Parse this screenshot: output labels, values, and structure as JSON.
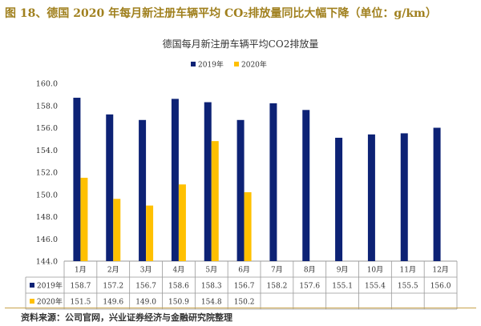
{
  "figure": {
    "title": "图 18、德国 2020 年每月新注册车辆平均 CO₂排放量同比大幅下降（单位：g/km）",
    "source": "资料来源：公司官网，兴业证券经济与金融研究院整理"
  },
  "chart_data": {
    "type": "bar",
    "title": "德国每月新注册车辆平均CO2排放量",
    "categories": [
      "1月",
      "2月",
      "3月",
      "4月",
      "5月",
      "6月",
      "7月",
      "8月",
      "9月",
      "10月",
      "11月",
      "12月"
    ],
    "series": [
      {
        "name": "2019年",
        "color": "#0d2275",
        "values": [
          158.7,
          157.2,
          156.7,
          158.6,
          158.3,
          156.7,
          158.2,
          157.6,
          155.1,
          155.4,
          155.5,
          156.0
        ]
      },
      {
        "name": "2020年",
        "color": "#ffc000",
        "values": [
          151.5,
          149.6,
          149.0,
          150.9,
          154.8,
          150.2,
          null,
          null,
          null,
          null,
          null,
          null
        ]
      }
    ],
    "table_labels": [
      "158.7",
      "157.2",
      "156.7",
      "158.6",
      "158.3",
      "156.7",
      "158.2",
      "157.6",
      "155.1",
      "155.4",
      "155.5",
      "156.0"
    ],
    "yticks": [
      "144.0",
      "146.0",
      "148.0",
      "150.0",
      "152.0",
      "154.0",
      "156.0",
      "158.0",
      "160.0"
    ],
    "ylim": [
      144,
      160
    ],
    "legend_position": "top-center",
    "grid": false,
    "data_table": true
  }
}
